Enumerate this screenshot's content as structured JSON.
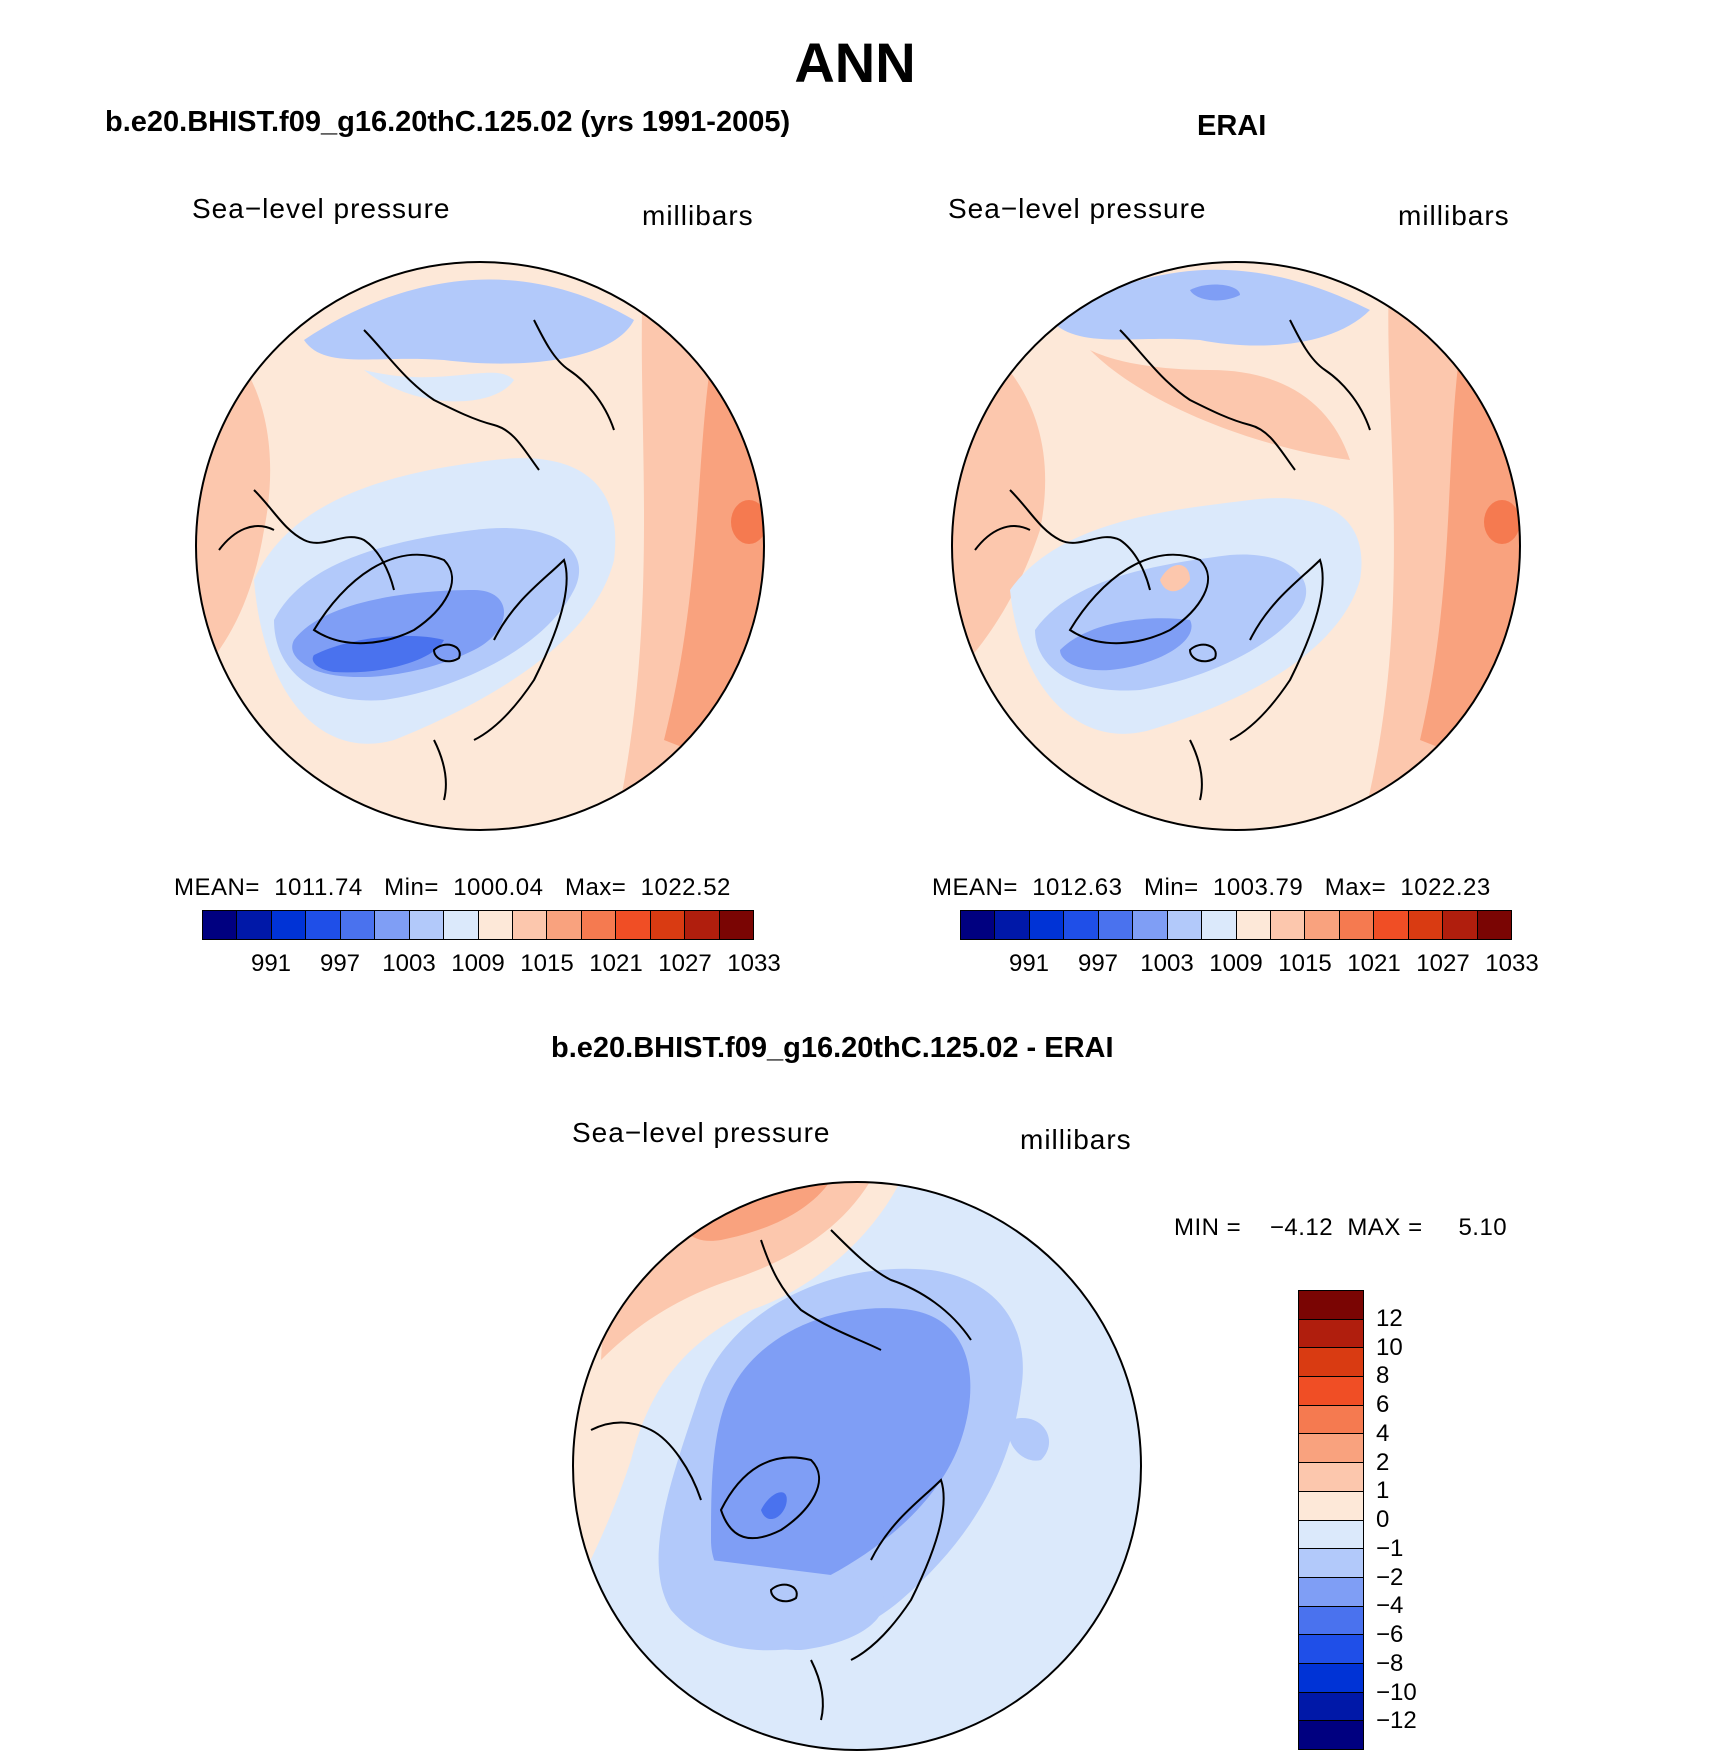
{
  "figure": {
    "title": "ANN",
    "colors": {
      "abs_palette": [
        "#000080",
        "#0018a8",
        "#0033d6",
        "#1f4fe8",
        "#4a72ee",
        "#7f9ef5",
        "#b2c9fa",
        "#dbe9fb",
        "#fde8d8",
        "#fcc7ad",
        "#f9a27e",
        "#f57a50",
        "#f04e25",
        "#d93b12",
        "#b01e0d",
        "#7a0503"
      ],
      "diff_palette": [
        "#000080",
        "#0018a8",
        "#0033d6",
        "#1f4fe8",
        "#4a72ee",
        "#7f9ef5",
        "#b2c9fa",
        "#dbe9fb",
        "#fde8d8",
        "#fcc7ad",
        "#f9a27e",
        "#f57a50",
        "#f04e25",
        "#d93b12",
        "#b01e0d",
        "#7a0503"
      ]
    }
  },
  "panels": {
    "model": {
      "title": "b.e20.BHIST.f09_g16.20thC.125.02 (yrs 1991-2005)",
      "variable_label": "Sea−level pressure",
      "units_label": "millibars",
      "stats": "MEAN=  1011.74   Min=  1000.04   Max=  1022.52",
      "colorbar_ticks": [
        "991",
        "997",
        "1003",
        "1009",
        "1015",
        "1021",
        "1027",
        "1033"
      ]
    },
    "obs": {
      "title": "ERAI",
      "variable_label": "Sea−level pressure",
      "units_label": "millibars",
      "stats": "MEAN=  1012.63   Min=  1003.79   Max=  1022.23",
      "colorbar_ticks": [
        "991",
        "997",
        "1003",
        "1009",
        "1015",
        "1021",
        "1027",
        "1033"
      ]
    },
    "diff": {
      "title": "b.e20.BHIST.f09_g16.20thC.125.02 - ERAI",
      "variable_label": "Sea−level pressure",
      "units_label": "millibars",
      "stats": "MIN =    −4.12  MAX =     5.10",
      "colorbar_ticks": [
        "12",
        "10",
        "8",
        "6",
        "4",
        "2",
        "1",
        "0",
        "−1",
        "−2",
        "−4",
        "−6",
        "−8",
        "−10",
        "−12"
      ]
    }
  },
  "chart_data": [
    {
      "type": "heatmap",
      "title": "b.e20.BHIST.f09_g16.20thC.125.02 (yrs 1991-2005)",
      "variable": "Sea-level pressure",
      "units": "millibars",
      "projection": "north polar stereographic",
      "mean": 1011.74,
      "min": 1000.04,
      "max": 1022.52,
      "contour_levels": [
        991,
        994,
        997,
        1000,
        1003,
        1006,
        1009,
        1012,
        1015,
        1018,
        1021,
        1024,
        1027,
        1030,
        1033
      ]
    },
    {
      "type": "heatmap",
      "title": "ERAI",
      "variable": "Sea-level pressure",
      "units": "millibars",
      "projection": "north polar stereographic",
      "mean": 1012.63,
      "min": 1003.79,
      "max": 1022.23,
      "contour_levels": [
        991,
        994,
        997,
        1000,
        1003,
        1006,
        1009,
        1012,
        1015,
        1018,
        1021,
        1024,
        1027,
        1030,
        1033
      ]
    },
    {
      "type": "heatmap",
      "title": "b.e20.BHIST.f09_g16.20thC.125.02 - ERAI",
      "variable": "Sea-level pressure",
      "units": "millibars",
      "projection": "north polar stereographic",
      "min": -4.12,
      "max": 5.1,
      "contour_levels": [
        -12,
        -10,
        -8,
        -6,
        -4,
        -2,
        -1,
        0,
        1,
        2,
        4,
        6,
        8,
        10,
        12
      ]
    }
  ]
}
